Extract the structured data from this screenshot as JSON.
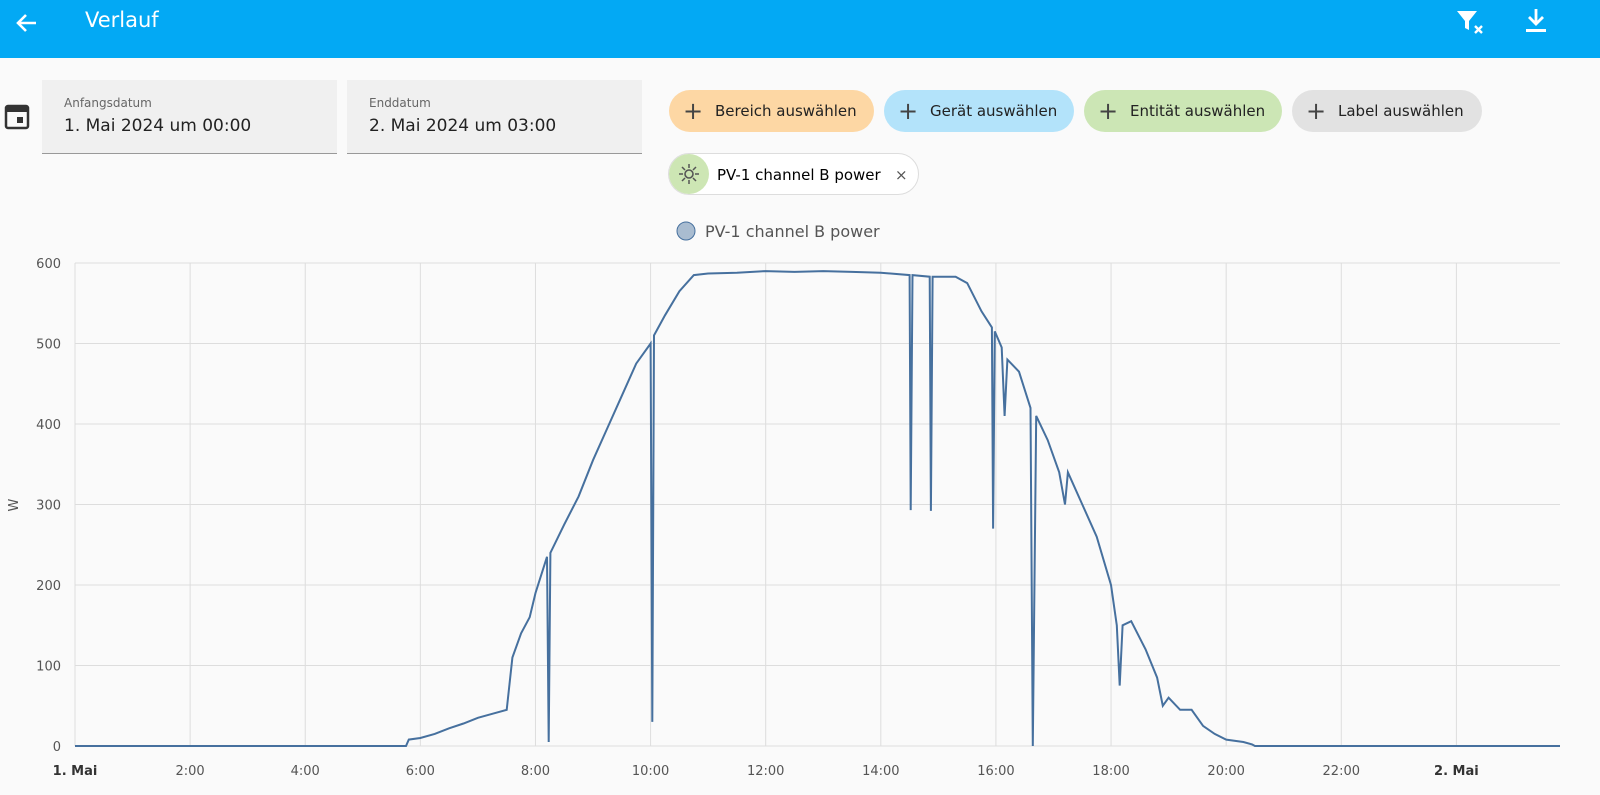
{
  "header": {
    "title": "Verlauf"
  },
  "date_range": {
    "start_label": "Anfangsdatum",
    "start_value": "1. Mai 2024 um 00:00",
    "end_label": "Enddatum",
    "end_value": "2. Mai 2024 um 03:00"
  },
  "filters": [
    "Bereich auswählen",
    "Gerät auswählen",
    "Entität auswählen",
    "Label auswählen"
  ],
  "selected": [
    "PV-1 channel B power"
  ],
  "chart_data": {
    "type": "line",
    "y_label": "W",
    "x": [
      0,
      5.75,
      5.8,
      6.0,
      6.25,
      6.5,
      6.75,
      7.0,
      7.25,
      7.5,
      7.6,
      7.75,
      7.9,
      8.0,
      8.2,
      8.23,
      8.26,
      8.5,
      8.75,
      9.0,
      9.25,
      9.5,
      9.75,
      10.0,
      10.03,
      10.06,
      10.25,
      10.5,
      10.75,
      11.0,
      11.5,
      12.0,
      12.5,
      13.0,
      13.5,
      14.0,
      14.5,
      14.52,
      14.55,
      14.85,
      14.87,
      14.9,
      15.3,
      15.5,
      15.75,
      15.93,
      15.95,
      15.98,
      16.1,
      16.15,
      16.2,
      16.4,
      16.6,
      16.64,
      16.7,
      16.9,
      17.1,
      17.2,
      17.25,
      17.5,
      17.75,
      18.0,
      18.1,
      18.15,
      18.2,
      18.35,
      18.6,
      18.8,
      18.9,
      19.0,
      19.2,
      19.4,
      19.6,
      19.8,
      20.0,
      20.3,
      20.45,
      20.5,
      25.8
    ],
    "series": [
      {
        "name": "PV-1 channel B power",
        "color": "#46709e",
        "values": [
          0,
          0,
          8,
          10,
          15,
          22,
          28,
          35,
          40,
          45,
          110,
          140,
          160,
          190,
          235,
          5,
          240,
          275,
          310,
          355,
          395,
          435,
          475,
          500,
          30,
          510,
          535,
          565,
          585,
          587,
          588,
          590,
          589,
          590,
          589,
          588,
          585,
          293,
          585,
          583,
          292,
          583,
          583,
          575,
          540,
          520,
          270,
          515,
          495,
          410,
          480,
          465,
          420,
          0,
          410,
          380,
          340,
          300,
          340,
          300,
          260,
          200,
          150,
          75,
          150,
          155,
          120,
          85,
          50,
          60,
          45,
          45,
          25,
          15,
          8,
          5,
          2,
          0,
          0
        ]
      }
    ],
    "xlim": [
      0,
      25.8
    ],
    "xticks": [
      {
        "value": 0,
        "label": "1. Mai"
      },
      {
        "value": 2,
        "label": "2:00"
      },
      {
        "value": 4,
        "label": "4:00"
      },
      {
        "value": 6,
        "label": "6:00"
      },
      {
        "value": 8,
        "label": "8:00"
      },
      {
        "value": 10,
        "label": "10:00"
      },
      {
        "value": 12,
        "label": "12:00"
      },
      {
        "value": 14,
        "label": "14:00"
      },
      {
        "value": 16,
        "label": "16:00"
      },
      {
        "value": 18,
        "label": "18:00"
      },
      {
        "value": 20,
        "label": "20:00"
      },
      {
        "value": 22,
        "label": "22:00"
      },
      {
        "value": 24,
        "label": "2. Mai"
      }
    ],
    "ylim": [
      0,
      600
    ],
    "yticks": [
      0,
      100,
      200,
      300,
      400,
      500,
      600
    ],
    "grid": true
  }
}
